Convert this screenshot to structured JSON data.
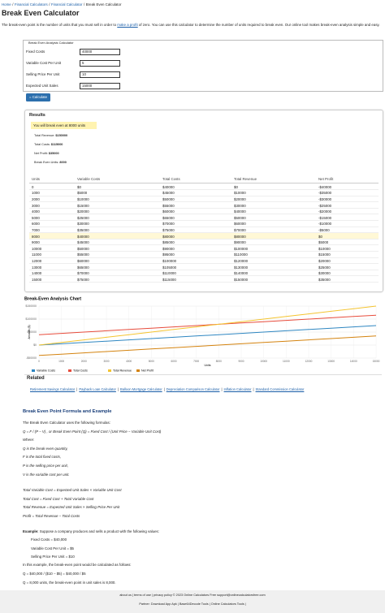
{
  "breadcrumb": {
    "items": [
      "Home",
      "Financial Calculators",
      "Financial Calculator",
      "Break Even Calculator"
    ],
    "separator": "/"
  },
  "title": "Break Even Calculator",
  "intro": {
    "before": "The break-even point is the number of units that you must sell in order to ",
    "link": "make a profit",
    "after": " of zero. You can use this calculator to determine the number of units required to break even. Our online tool makes break-even analysis simple and easy."
  },
  "form": {
    "legend": "Break Even Analysis Calculator",
    "fields": [
      {
        "label": "Fixed Costs",
        "value": "40000"
      },
      {
        "label": "Variable Cost Per Unit",
        "value": "5"
      },
      {
        "label": "Selling Price Per Unit",
        "value": "10"
      },
      {
        "label": "Expected Unit Sales",
        "value": "15000"
      }
    ],
    "button": "= Calculate"
  },
  "results": {
    "heading": "Results",
    "highlight": "You will break even at 8000 units",
    "stats": [
      {
        "label": "Total Revenue:",
        "value": "$150000"
      },
      {
        "label": "Total Costs:",
        "value": "$115000"
      },
      {
        "label": "Net Profit:",
        "value": "$35000"
      },
      {
        "label": "Break Even Units:",
        "value": "8000"
      }
    ]
  },
  "table": {
    "headers": [
      "Units",
      "Variable Costs",
      "Total Costs",
      "Total Revenue",
      "Net Profit"
    ],
    "rows": [
      [
        "0",
        "$0",
        "$40000",
        "$0",
        "-$40000"
      ],
      [
        "1000",
        "$5000",
        "$45000",
        "$10000",
        "-$35000"
      ],
      [
        "2000",
        "$10000",
        "$50000",
        "$20000",
        "-$30000"
      ],
      [
        "3000",
        "$15000",
        "$55000",
        "$30000",
        "-$25000"
      ],
      [
        "4000",
        "$20000",
        "$60000",
        "$40000",
        "-$20000"
      ],
      [
        "5000",
        "$25000",
        "$65000",
        "$50000",
        "-$15000"
      ],
      [
        "6000",
        "$30000",
        "$70000",
        "$60000",
        "-$10000"
      ],
      [
        "7000",
        "$35000",
        "$75000",
        "$70000",
        "-$5000"
      ],
      [
        "8000",
        "$40000",
        "$80000",
        "$80000",
        "$0"
      ],
      [
        "9000",
        "$45000",
        "$85000",
        "$90000",
        "$5000"
      ],
      [
        "10000",
        "$50000",
        "$90000",
        "$100000",
        "$10000"
      ],
      [
        "11000",
        "$55000",
        "$95000",
        "$110000",
        "$15000"
      ],
      [
        "12000",
        "$60000",
        "$100000",
        "$120000",
        "$20000"
      ],
      [
        "13000",
        "$65000",
        "$105000",
        "$130000",
        "$25000"
      ],
      [
        "14000",
        "$70000",
        "$110000",
        "$140000",
        "$30000"
      ],
      [
        "15000",
        "$75000",
        "$115000",
        "$150000",
        "$35000"
      ]
    ]
  },
  "chart_data": {
    "type": "line",
    "title": "Break-Even Analysis Chart",
    "xlabel": "Units",
    "ylabel": "Amount ($)",
    "x": [
      0,
      1000,
      2000,
      3000,
      4000,
      5000,
      6000,
      7000,
      8000,
      9000,
      10000,
      11000,
      12000,
      13000,
      14000,
      15000
    ],
    "series": [
      {
        "name": "Variable Costs",
        "color": "#2e86c1",
        "values": [
          0,
          5000,
          10000,
          15000,
          20000,
          25000,
          30000,
          35000,
          40000,
          45000,
          50000,
          55000,
          60000,
          65000,
          70000,
          75000
        ]
      },
      {
        "name": "Total Costs",
        "color": "#e74c3c",
        "values": [
          40000,
          45000,
          50000,
          55000,
          60000,
          65000,
          70000,
          75000,
          80000,
          85000,
          90000,
          95000,
          100000,
          105000,
          110000,
          115000
        ]
      },
      {
        "name": "Total Revenue",
        "color": "#f4c430",
        "values": [
          0,
          10000,
          20000,
          30000,
          40000,
          50000,
          60000,
          70000,
          80000,
          90000,
          100000,
          110000,
          120000,
          130000,
          140000,
          150000
        ]
      },
      {
        "name": "Net Profit",
        "color": "#d4830f",
        "values": [
          -40000,
          -35000,
          -30000,
          -25000,
          -20000,
          -15000,
          -10000,
          -5000,
          0,
          5000,
          10000,
          15000,
          20000,
          25000,
          30000,
          35000
        ]
      }
    ],
    "xlim": [
      0,
      15000
    ],
    "xticks": [
      0,
      1000,
      2000,
      3000,
      4000,
      5000,
      6000,
      7000,
      8000,
      9000,
      10000,
      11000,
      12000,
      13000,
      14000,
      15000
    ],
    "ylim": [
      -50000,
      150000
    ],
    "yticks": [
      {
        "value": -50000,
        "label": "-$50000"
      },
      {
        "value": 0,
        "label": "$0"
      },
      {
        "value": 50000,
        "label": "$50000"
      },
      {
        "value": 100000,
        "label": "$100000"
      },
      {
        "value": 150000,
        "label": "$150000"
      }
    ],
    "grid": true,
    "legend": "bottom"
  },
  "related": {
    "heading": "Related",
    "separator": "|",
    "links": [
      "Retirement Savings Calculator",
      "Payback Loan Calculator",
      "Balloon Mortgage Calculator",
      "Depreciation Comparison Calculator",
      "Inflation Calculator",
      "Standard Commission Calculator"
    ]
  },
  "formula": {
    "heading": "Break Even Point Formula and Example",
    "lines": [
      "The Break Even Calculator uses the following formulas:",
      "Q = F / (P − V) , or Break Even Point (Q) = Fixed Cost / (Unit Price − Variable Unit Cost)",
      "Where:",
      "Q is the break even quantity,",
      "F is the total fixed costs,",
      "P is the selling price per unit,",
      "V is the variable cost per unit.",
      "Total Variable Cost = Expected Unit Sales × Variable Unit Cost",
      "Total Cost = Fixed Cost + Total Variable Cost",
      "Total Revenue = Expected Unit Sales × Selling Price Per Unit",
      "Profit = Total Revenue − Total Costs"
    ],
    "example_label": "Example:",
    "example_text": " Suppose a company produces and sells a product with the following values:",
    "example_values": [
      "Fixed Costs = $40,000",
      "Variable Cost Per Unit = $5",
      "Selling Price Per Unit = $10"
    ],
    "calc_lines": [
      "In this example, the break-even point would be calculated as follows:",
      "Q = $40,000 / ($10 − $5) = $40,000 / $5",
      "Q = 8,000 units, the break-even point in unit sales is 8,000."
    ]
  },
  "footer": {
    "line1": "about us | terms of use | privacy policy  © 2023 Online Calculators Free  support@onlinecalculatorsfree.com",
    "line2": "Partner:   Download App Apk | Base64Decode Tools | Online Calculators Tools |"
  }
}
